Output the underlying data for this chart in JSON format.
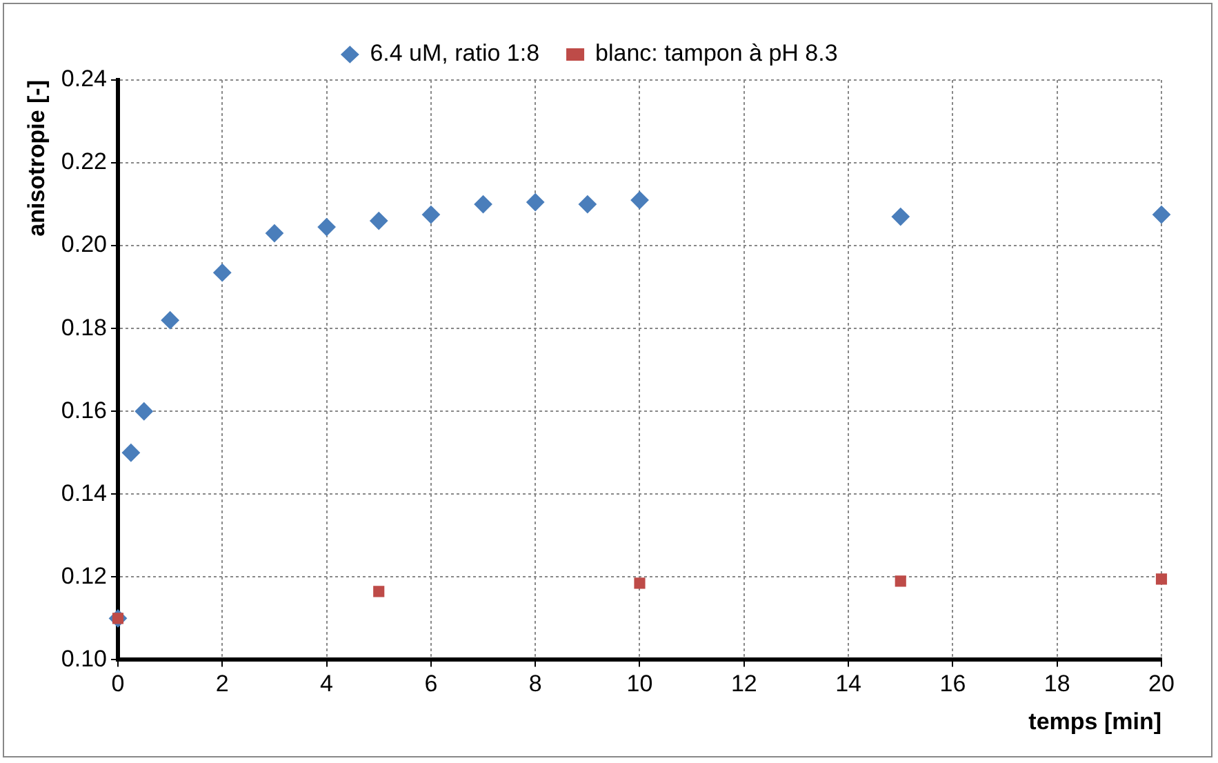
{
  "chart_data": {
    "type": "scatter",
    "xlabel": "temps [min]",
    "ylabel": "anisotropie [-]",
    "xlim": [
      0,
      20
    ],
    "xticks": [
      0,
      2,
      4,
      6,
      8,
      10,
      12,
      14,
      16,
      18,
      20
    ],
    "ylim": [
      0.1,
      0.24
    ],
    "yticks": [
      {
        "value": 0.1,
        "label": "0.10"
      },
      {
        "value": 0.12,
        "label": "0.12"
      },
      {
        "value": 0.14,
        "label": "0.14"
      },
      {
        "value": 0.16,
        "label": "0.16"
      },
      {
        "value": 0.18,
        "label": "0.18"
      },
      {
        "value": 0.2,
        "label": "0.20"
      },
      {
        "value": 0.22,
        "label": "0.22"
      },
      {
        "value": 0.24,
        "label": "0.24"
      }
    ],
    "grid": true,
    "legend": "top",
    "series": [
      {
        "name": "6.4 uM, ratio 1:8",
        "color": "#4a7ebb",
        "marker": "diamond",
        "x": [
          0,
          0.25,
          0.5,
          1,
          2,
          3,
          4,
          5,
          6,
          7,
          8,
          9,
          10,
          15,
          20
        ],
        "values": [
          0.11,
          0.15,
          0.16,
          0.182,
          0.1935,
          0.203,
          0.2045,
          0.206,
          0.2075,
          0.21,
          0.2105,
          0.21,
          0.211,
          0.207,
          0.2075
        ]
      },
      {
        "name": "blanc: tampon à pH 8.3",
        "color": "#be4b48",
        "marker": "square",
        "x": [
          0,
          5,
          10,
          15,
          20
        ],
        "values": [
          0.11,
          0.1165,
          0.1185,
          0.119,
          0.1195
        ]
      }
    ]
  }
}
